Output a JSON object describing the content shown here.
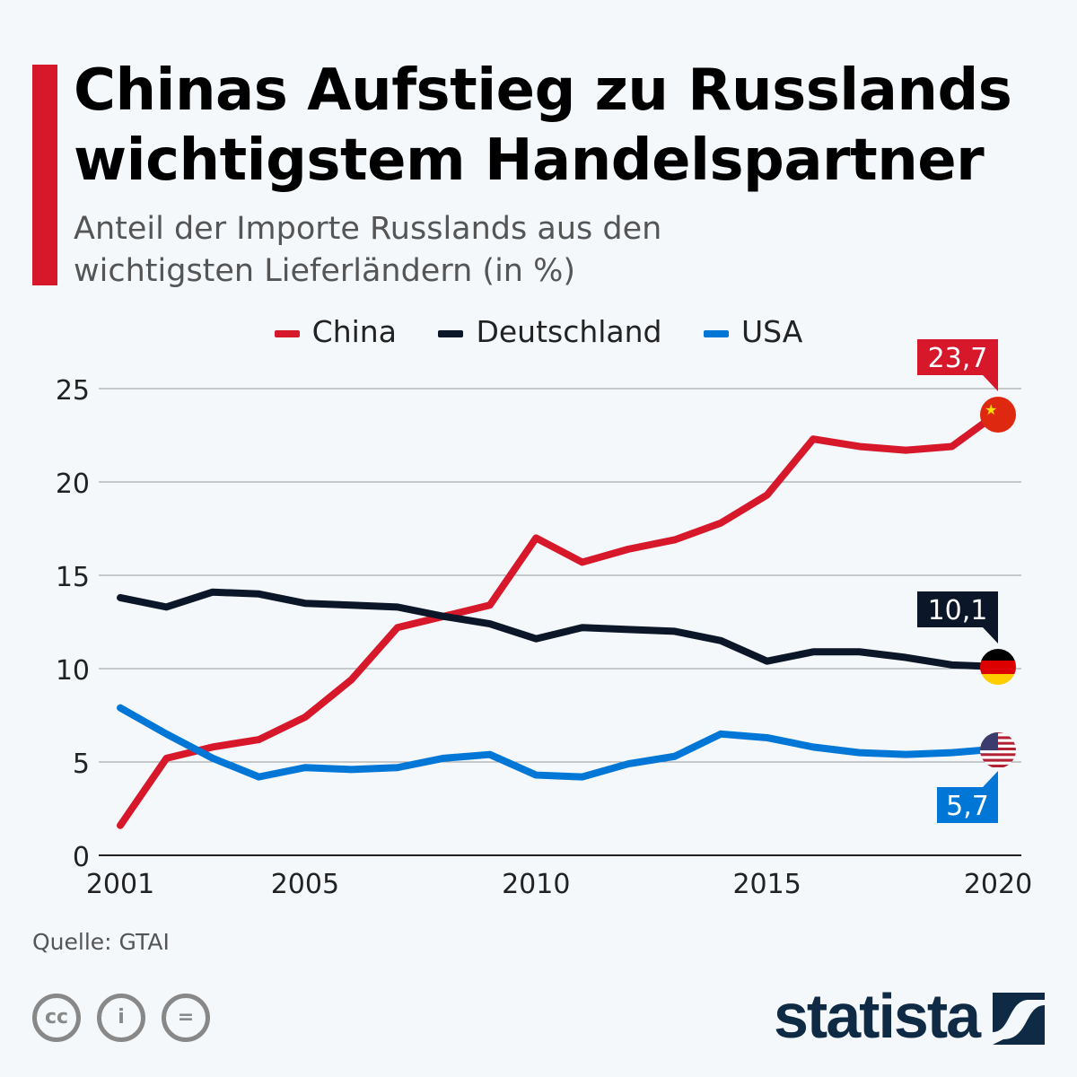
{
  "header": {
    "title_line1": "Chinas Aufstieg zu Russlands",
    "title_line2": "wichtigstem Handelspartner",
    "subtitle_line1": "Anteil der Importe Russlands aus den",
    "subtitle_line2": "wichtigsten Lieferländern (in %)"
  },
  "footer": {
    "source": "Quelle: GTAI",
    "brand": "statista",
    "license_icons": [
      "cc-icon",
      "by-icon",
      "nd-icon"
    ]
  },
  "chart_data": {
    "type": "line",
    "title": "Chinas Aufstieg zu Russlands wichtigstem Handelspartner",
    "subtitle": "Anteil der Importe Russlands aus den wichtigsten Lieferländern (in %)",
    "x": [
      2001,
      2002,
      2003,
      2004,
      2005,
      2006,
      2007,
      2008,
      2009,
      2010,
      2011,
      2012,
      2013,
      2014,
      2015,
      2016,
      2017,
      2018,
      2019,
      2020
    ],
    "x_ticks": [
      "2001",
      "2005",
      "2010",
      "2015",
      "2020"
    ],
    "y_ticks": [
      "0",
      "5",
      "10",
      "15",
      "20",
      "25"
    ],
    "ylim": [
      0,
      25
    ],
    "grid": true,
    "legend_position": "top",
    "series": [
      {
        "name": "China",
        "color": "#d7182a",
        "values": [
          1.6,
          5.2,
          5.8,
          6.2,
          7.4,
          9.4,
          12.2,
          12.8,
          13.4,
          17.0,
          15.7,
          16.4,
          16.9,
          17.8,
          19.3,
          22.3,
          21.9,
          21.7,
          21.9,
          23.7
        ],
        "end_label": "23,7",
        "flag": "china-flag"
      },
      {
        "name": "Deutschland",
        "color": "#0b1628",
        "values": [
          13.8,
          13.3,
          14.1,
          14.0,
          13.5,
          13.4,
          13.3,
          12.8,
          12.4,
          11.6,
          12.2,
          12.1,
          12.0,
          11.5,
          10.4,
          10.9,
          10.9,
          10.6,
          10.2,
          10.1
        ],
        "end_label": "10,1",
        "flag": "germany-flag"
      },
      {
        "name": "USA",
        "color": "#0077d7",
        "values": [
          7.9,
          6.5,
          5.2,
          4.2,
          4.7,
          4.6,
          4.7,
          5.2,
          5.4,
          4.3,
          4.2,
          4.9,
          5.3,
          6.5,
          6.3,
          5.8,
          5.5,
          5.4,
          5.5,
          5.7
        ],
        "end_label": "5,7",
        "flag": "usa-flag"
      }
    ]
  }
}
